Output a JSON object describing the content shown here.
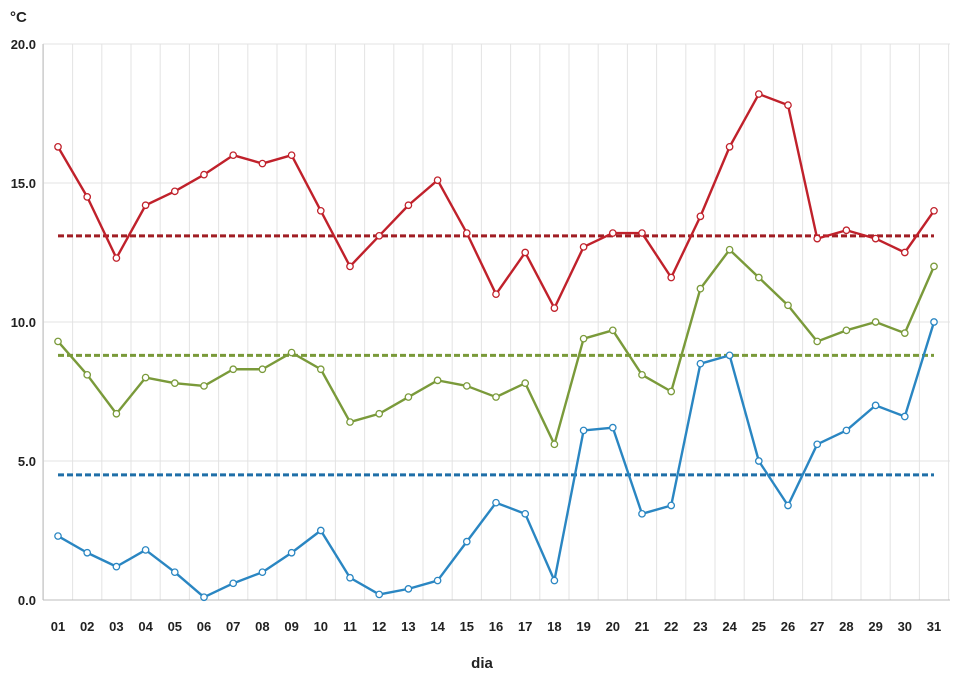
{
  "chart_data": {
    "type": "line",
    "ylabel": "°C",
    "xlabel": "dia",
    "ylim": [
      0,
      20
    ],
    "y_ticks": [
      "0.0",
      "5.0",
      "10.0",
      "15.0",
      "20.0"
    ],
    "y_tick_values": [
      0,
      5,
      10,
      15,
      20
    ],
    "categories": [
      "01",
      "02",
      "03",
      "04",
      "05",
      "06",
      "07",
      "08",
      "09",
      "10",
      "11",
      "12",
      "13",
      "14",
      "15",
      "16",
      "17",
      "18",
      "19",
      "20",
      "21",
      "22",
      "23",
      "24",
      "25",
      "26",
      "27",
      "28",
      "29",
      "30",
      "31"
    ],
    "grid": true,
    "series": [
      {
        "color": "#c0212b",
        "values": [
          16.3,
          14.5,
          12.3,
          14.2,
          14.7,
          15.3,
          16.0,
          15.7,
          16.0,
          14.0,
          12.0,
          13.1,
          14.2,
          15.1,
          13.2,
          11.0,
          12.5,
          10.5,
          12.7,
          13.2,
          13.2,
          11.6,
          13.8,
          16.3,
          18.2,
          17.8,
          13.0,
          13.3,
          13.0,
          12.5,
          14.0
        ]
      },
      {
        "color": "#7a9a3a",
        "values": [
          9.3,
          8.1,
          6.7,
          8.0,
          7.8,
          7.7,
          8.3,
          8.3,
          8.9,
          8.3,
          6.4,
          6.7,
          7.3,
          7.9,
          7.7,
          7.3,
          7.8,
          5.6,
          9.4,
          9.7,
          8.1,
          7.5,
          11.2,
          12.6,
          11.6,
          10.6,
          9.3,
          9.7,
          10.0,
          9.6,
          12.0
        ]
      },
      {
        "color": "#2a86c2",
        "values": [
          2.3,
          1.7,
          1.2,
          1.8,
          1.0,
          0.1,
          0.6,
          1.0,
          1.7,
          2.5,
          0.8,
          0.2,
          0.4,
          0.7,
          2.1,
          3.5,
          3.1,
          0.7,
          6.1,
          6.2,
          3.1,
          3.4,
          8.5,
          8.8,
          5.0,
          3.4,
          5.6,
          6.1,
          7.0,
          6.6,
          10.0
        ]
      }
    ],
    "reference_lines": [
      {
        "color": "#a01e24",
        "value": 13.1,
        "style": "dashed"
      },
      {
        "color": "#7a9a3a",
        "value": 8.8,
        "style": "dashed"
      },
      {
        "color": "#1f6fa8",
        "value": 4.5,
        "style": "dashed"
      }
    ]
  }
}
